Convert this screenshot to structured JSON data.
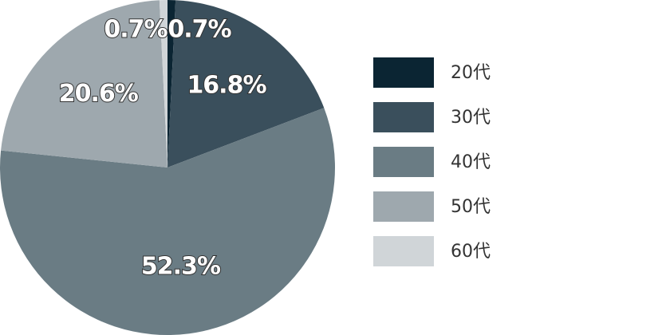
{
  "chart_data": {
    "type": "pie",
    "categories": [
      "20代",
      "30代",
      "40代",
      "50代",
      "60代"
    ],
    "values": [
      0.7,
      16.8,
      52.3,
      20.6,
      0.7
    ],
    "value_labels": [
      "0.7%",
      "16.8%",
      "52.3%",
      "20.6%",
      "0.7%"
    ],
    "colors": [
      "#0b2533",
      "#3a4f5c",
      "#6a7c84",
      "#9ea8ae",
      "#d0d5d8"
    ],
    "legend": "right"
  }
}
